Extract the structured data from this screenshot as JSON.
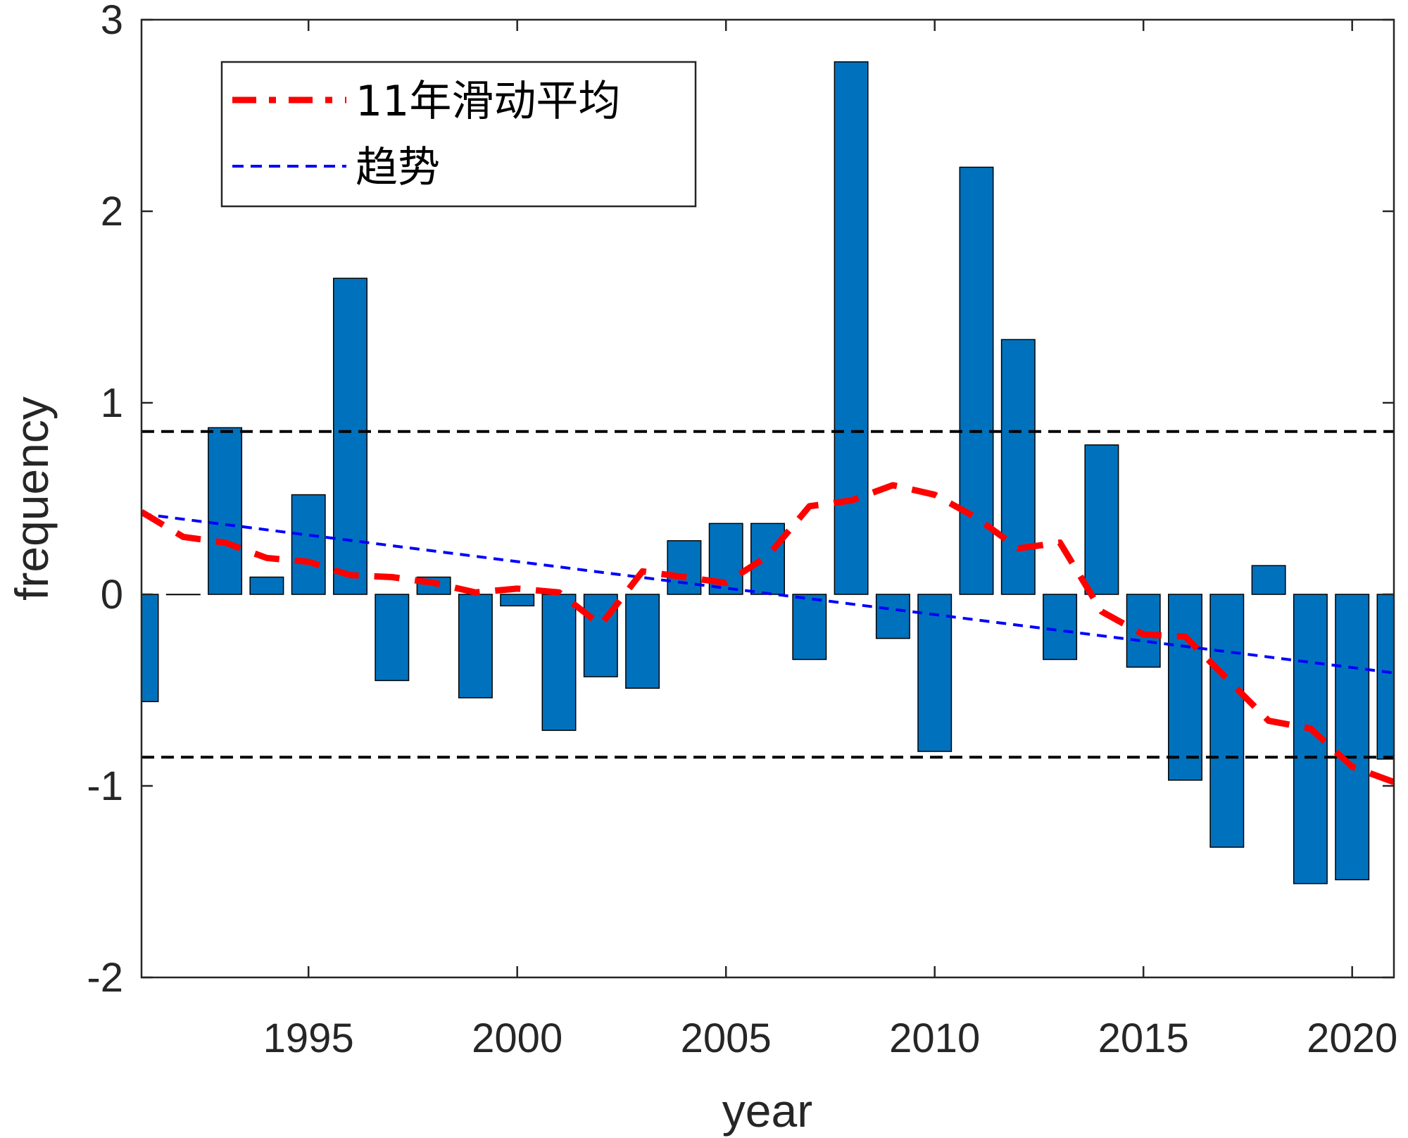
{
  "chart_data": {
    "type": "bar",
    "xlabel": "year",
    "ylabel": "frequency",
    "xlim": [
      1991,
      2021
    ],
    "ylim": [
      -2,
      3
    ],
    "xticks": [
      1995,
      2000,
      2005,
      2010,
      2015,
      2020
    ],
    "yticks": [
      -2,
      -1,
      0,
      1,
      2,
      3
    ],
    "grid": false,
    "legend_position": "top-left",
    "colors": {
      "bars": "#0072BD",
      "moving_average": "#FF0000",
      "trend": "#0000FF",
      "thresholds": "#000000"
    },
    "x": [
      1991,
      1992,
      1993,
      1994,
      1995,
      1996,
      1997,
      1998,
      1999,
      2000,
      2001,
      2002,
      2003,
      2004,
      2005,
      2006,
      2007,
      2008,
      2009,
      2010,
      2011,
      2012,
      2013,
      2014,
      2015,
      2016,
      2017,
      2018,
      2019,
      2020,
      2021
    ],
    "values": [
      -0.56,
      0.0,
      0.87,
      0.09,
      0.52,
      1.65,
      -0.45,
      0.09,
      -0.54,
      -0.06,
      -0.71,
      -0.43,
      -0.49,
      0.28,
      0.37,
      0.37,
      -0.34,
      2.78,
      -0.23,
      -0.82,
      2.23,
      1.33,
      -0.34,
      0.78,
      -0.38,
      -0.97,
      -1.32,
      0.15,
      -1.51,
      -1.49,
      -0.86
    ],
    "moving_average": {
      "name": "11年滑动平均",
      "x": [
        1991,
        1992,
        1993,
        1994,
        1995,
        1996,
        1997,
        1998,
        1999,
        2000,
        2001,
        2002,
        2003,
        2004,
        2005,
        2006,
        2007,
        2008,
        2009,
        2010,
        2011,
        2012,
        2013,
        2014,
        2015,
        2016,
        2017,
        2018,
        2019,
        2020,
        2021
      ],
      "y": [
        0.43,
        0.3,
        0.27,
        0.19,
        0.17,
        0.1,
        0.09,
        0.06,
        0.01,
        0.03,
        0.01,
        -0.16,
        0.12,
        0.09,
        0.06,
        0.2,
        0.46,
        0.49,
        0.57,
        0.52,
        0.4,
        0.24,
        0.27,
        -0.09,
        -0.21,
        -0.22,
        -0.44,
        -0.66,
        -0.7,
        -0.9,
        -0.98
      ]
    },
    "trend": {
      "name": "趋势",
      "x": [
        1991,
        2021
      ],
      "y": [
        0.42,
        -0.41
      ]
    },
    "thresholds": [
      0.85,
      -0.85
    ]
  }
}
